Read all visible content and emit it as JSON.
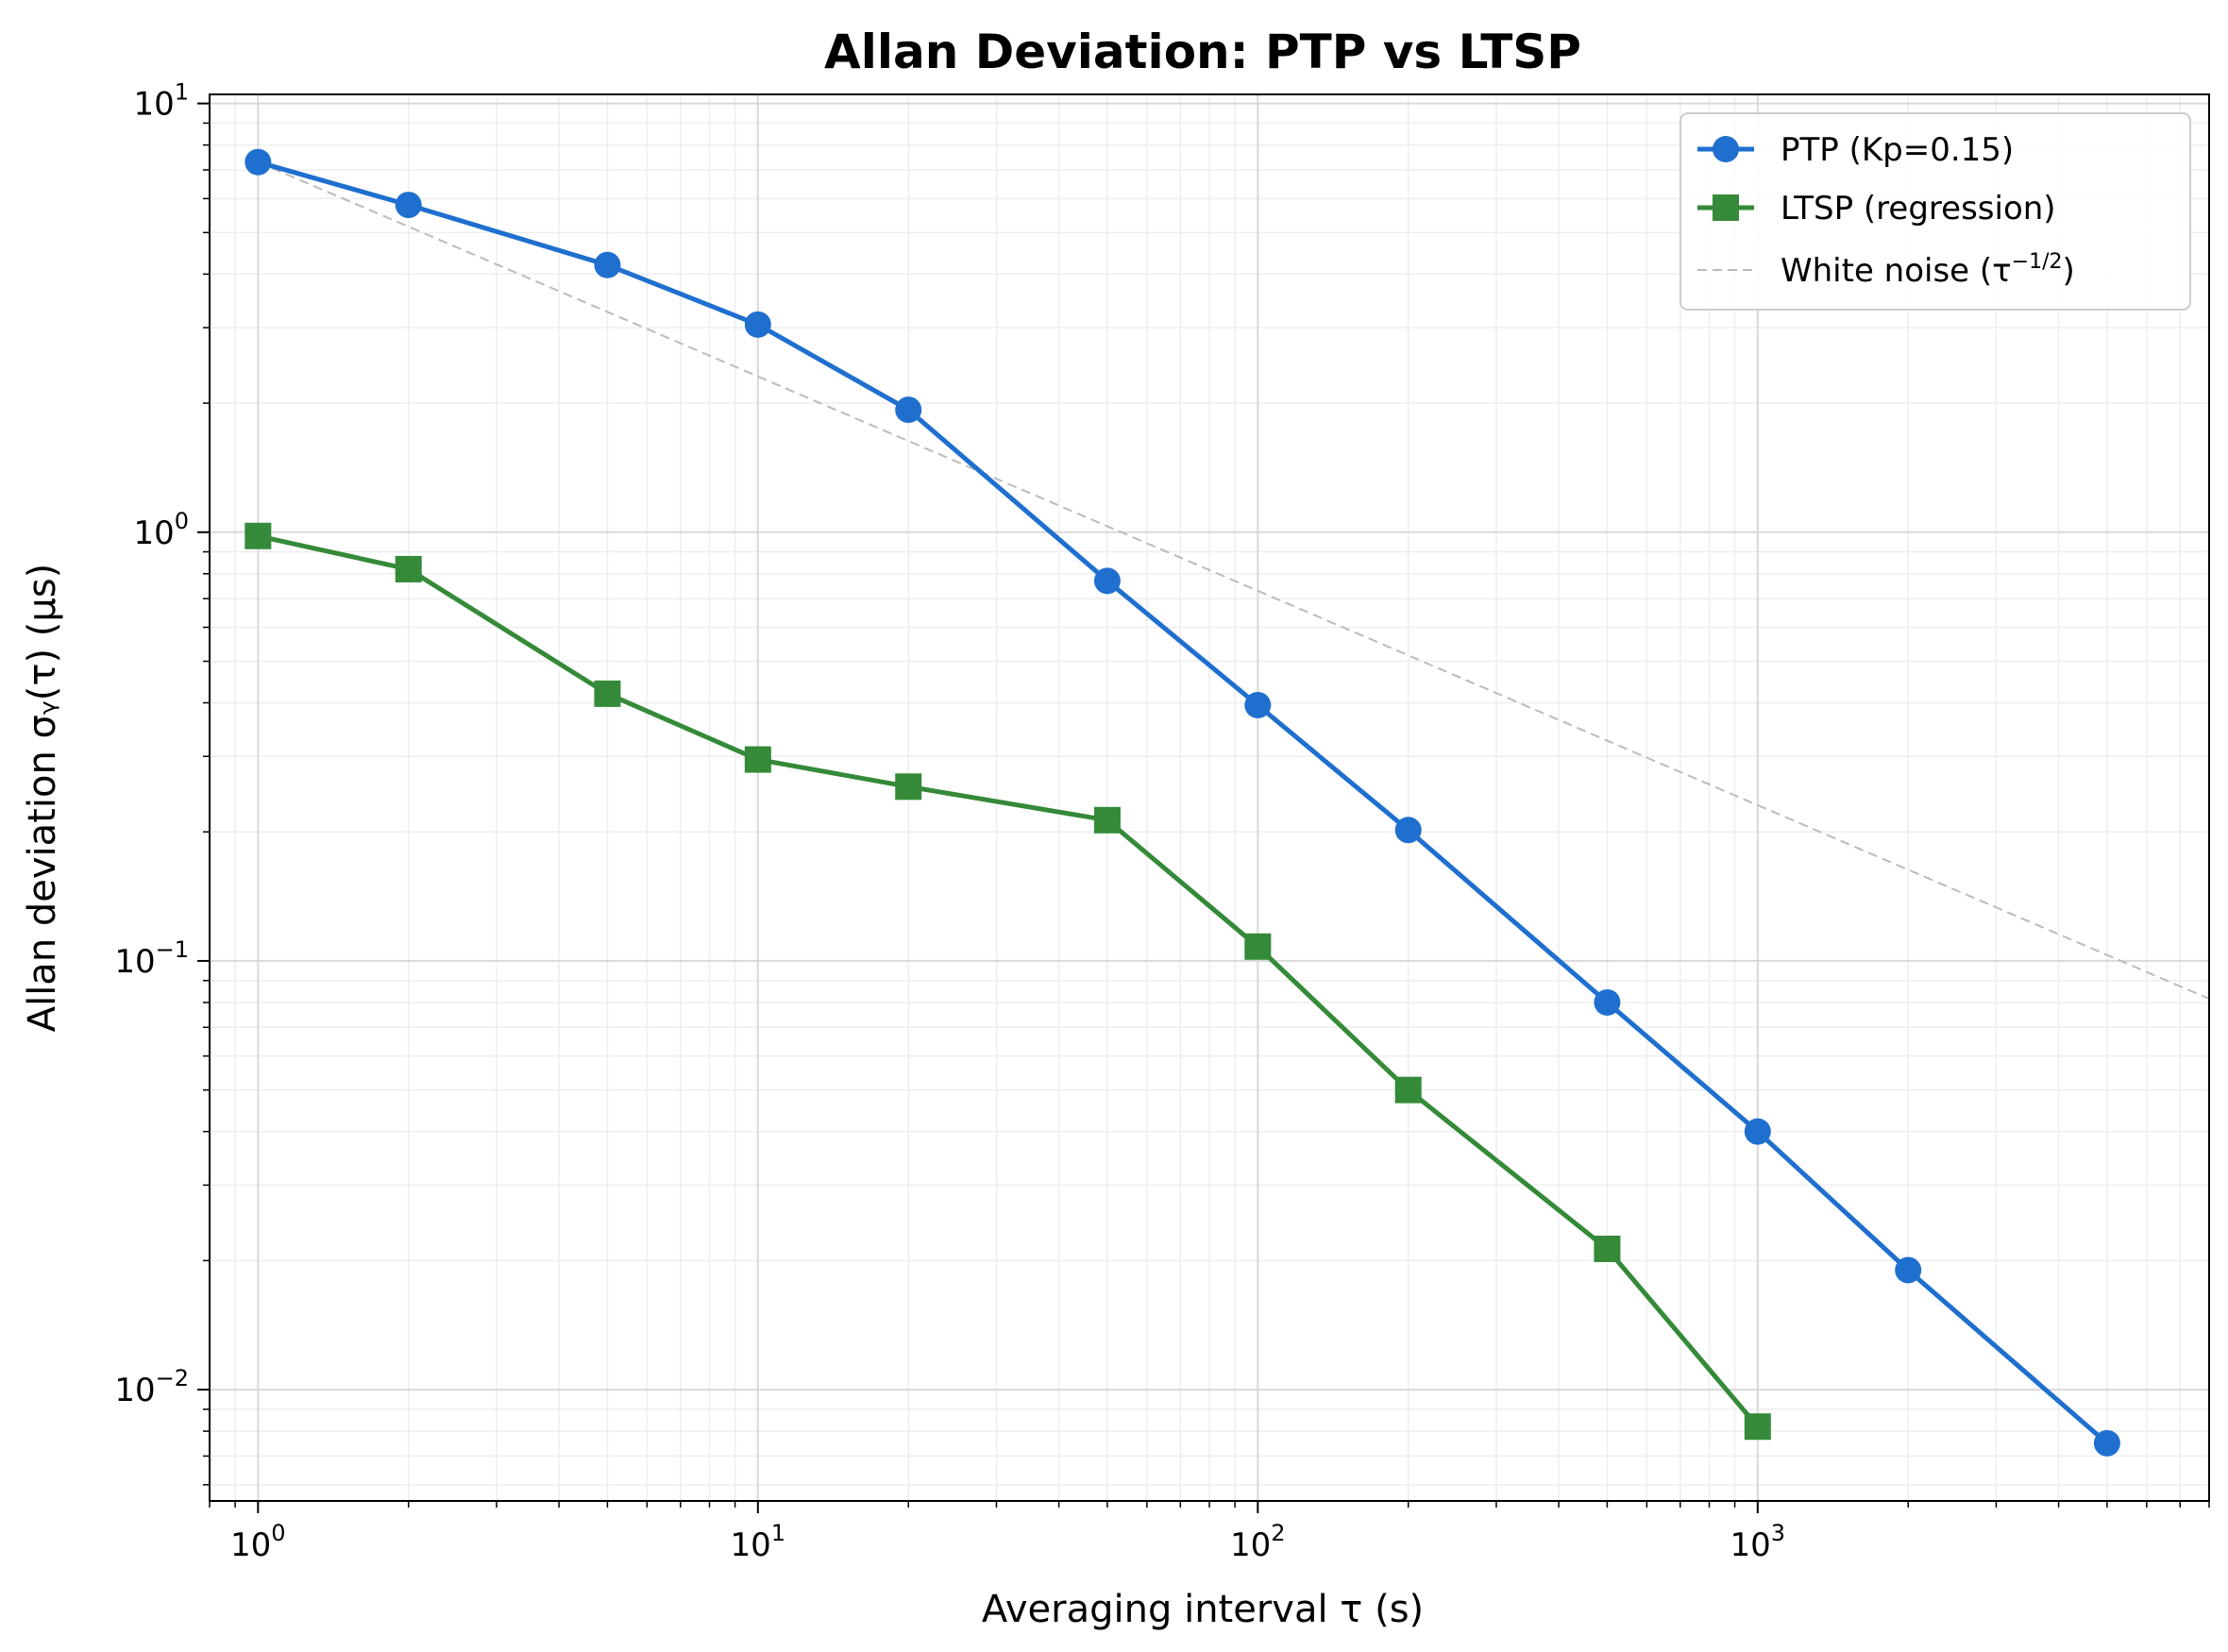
{
  "chart_data": {
    "type": "line",
    "title": "Allan Deviation: PTP vs LTSP",
    "xlabel": "Averaging interval τ (s)",
    "ylabel": "Allan deviation σᵧ(τ) (µs)",
    "x_scale": "log",
    "y_scale": "log",
    "xlim": [
      0.8,
      8000
    ],
    "ylim": [
      0.0055,
      10.5
    ],
    "grid": true,
    "legend_position": "top-right",
    "x_ticks": [
      {
        "base": "10",
        "exp": "0",
        "value": 1
      },
      {
        "base": "10",
        "exp": "1",
        "value": 10
      },
      {
        "base": "10",
        "exp": "2",
        "value": 100
      },
      {
        "base": "10",
        "exp": "3",
        "value": 1000
      }
    ],
    "y_ticks": [
      {
        "base": "10",
        "exp": "1",
        "value": 10
      },
      {
        "base": "10",
        "exp": "0",
        "value": 1
      },
      {
        "base": "10",
        "exp": "−1",
        "value": 0.1
      },
      {
        "base": "10",
        "exp": "−2",
        "value": 0.01
      }
    ],
    "series": [
      {
        "name": "PTP (Kp=0.15)",
        "color": "#1f6fcf",
        "marker": "circle",
        "style": "solid",
        "x": [
          1,
          2,
          5,
          10,
          20,
          50,
          100,
          200,
          500,
          1000,
          2000,
          5000
        ],
        "y": [
          7.3,
          5.8,
          4.2,
          3.05,
          1.93,
          0.77,
          0.395,
          0.202,
          0.08,
          0.04,
          0.019,
          0.0075
        ]
      },
      {
        "name": "LTSP (regression)",
        "color": "#348a38",
        "marker": "square",
        "style": "solid",
        "x": [
          1,
          2,
          5,
          10,
          20,
          50,
          100,
          200,
          500,
          1000
        ],
        "y": [
          0.98,
          0.82,
          0.42,
          0.295,
          0.255,
          0.213,
          0.108,
          0.05,
          0.0213,
          0.0082
        ]
      },
      {
        "name": "White noise (τ",
        "name_exp": "−1/2",
        "name_suffix": ")",
        "color": "#bbbbbb",
        "marker": "none",
        "style": "dashed",
        "x": [
          1,
          8000
        ],
        "y": [
          7.3,
          0.0816
        ]
      }
    ]
  }
}
